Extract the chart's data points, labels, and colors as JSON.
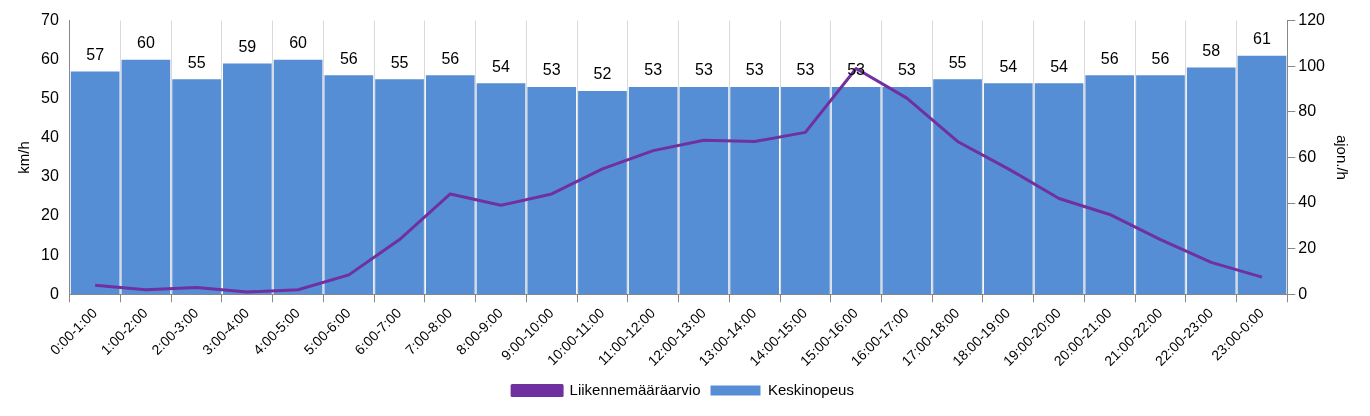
{
  "chart_data": {
    "type": "bar",
    "categories": [
      "0:00-1:00",
      "1:00-2:00",
      "2:00-3:00",
      "3:00-4:00",
      "4:00-5:00",
      "5:00-6:00",
      "6:00-7:00",
      "7:00-8:00",
      "8:00-9:00",
      "9:00-10:00",
      "10:00-11:00",
      "11:00-12:00",
      "12:00-13:00",
      "13:00-14:00",
      "14:00-15:00",
      "15:00-16:00",
      "16:00-17:00",
      "17:00-18:00",
      "18:00-19:00",
      "19:00-20:00",
      "20:00-21:00",
      "21:00-22:00",
      "22:00-23:00",
      "23:00-0:00"
    ],
    "series": [
      {
        "name": "Keskinopeus",
        "color": "#558ed5",
        "data_labels": true,
        "values": [
          57,
          60,
          55,
          59,
          60,
          56,
          55,
          56,
          54,
          53,
          52,
          53,
          53,
          53,
          53,
          53,
          53,
          55,
          54,
          54,
          56,
          56,
          58,
          61
        ]
      },
      {
        "name": "Liikennemääräarvio",
        "color": "#7030a0",
        "type": "line",
        "axis": "y2",
        "values": [
          4,
          2,
          3,
          1,
          2,
          8.5,
          24,
          44,
          39,
          44,
          55,
          63,
          67.5,
          67,
          71,
          99,
          86,
          67,
          55,
          42,
          35,
          24,
          14,
          7.5
        ]
      }
    ],
    "ylabel": "km/h",
    "y2label": "ajon./h",
    "ylim": [
      0,
      70
    ],
    "yticks": [
      0,
      10,
      20,
      30,
      40,
      50,
      60,
      70
    ],
    "y2lim": [
      0,
      120
    ],
    "y2ticks": [
      0,
      20,
      40,
      60,
      80,
      100,
      120
    ],
    "grid": "x",
    "legend": "bottom",
    "marker": "none"
  }
}
